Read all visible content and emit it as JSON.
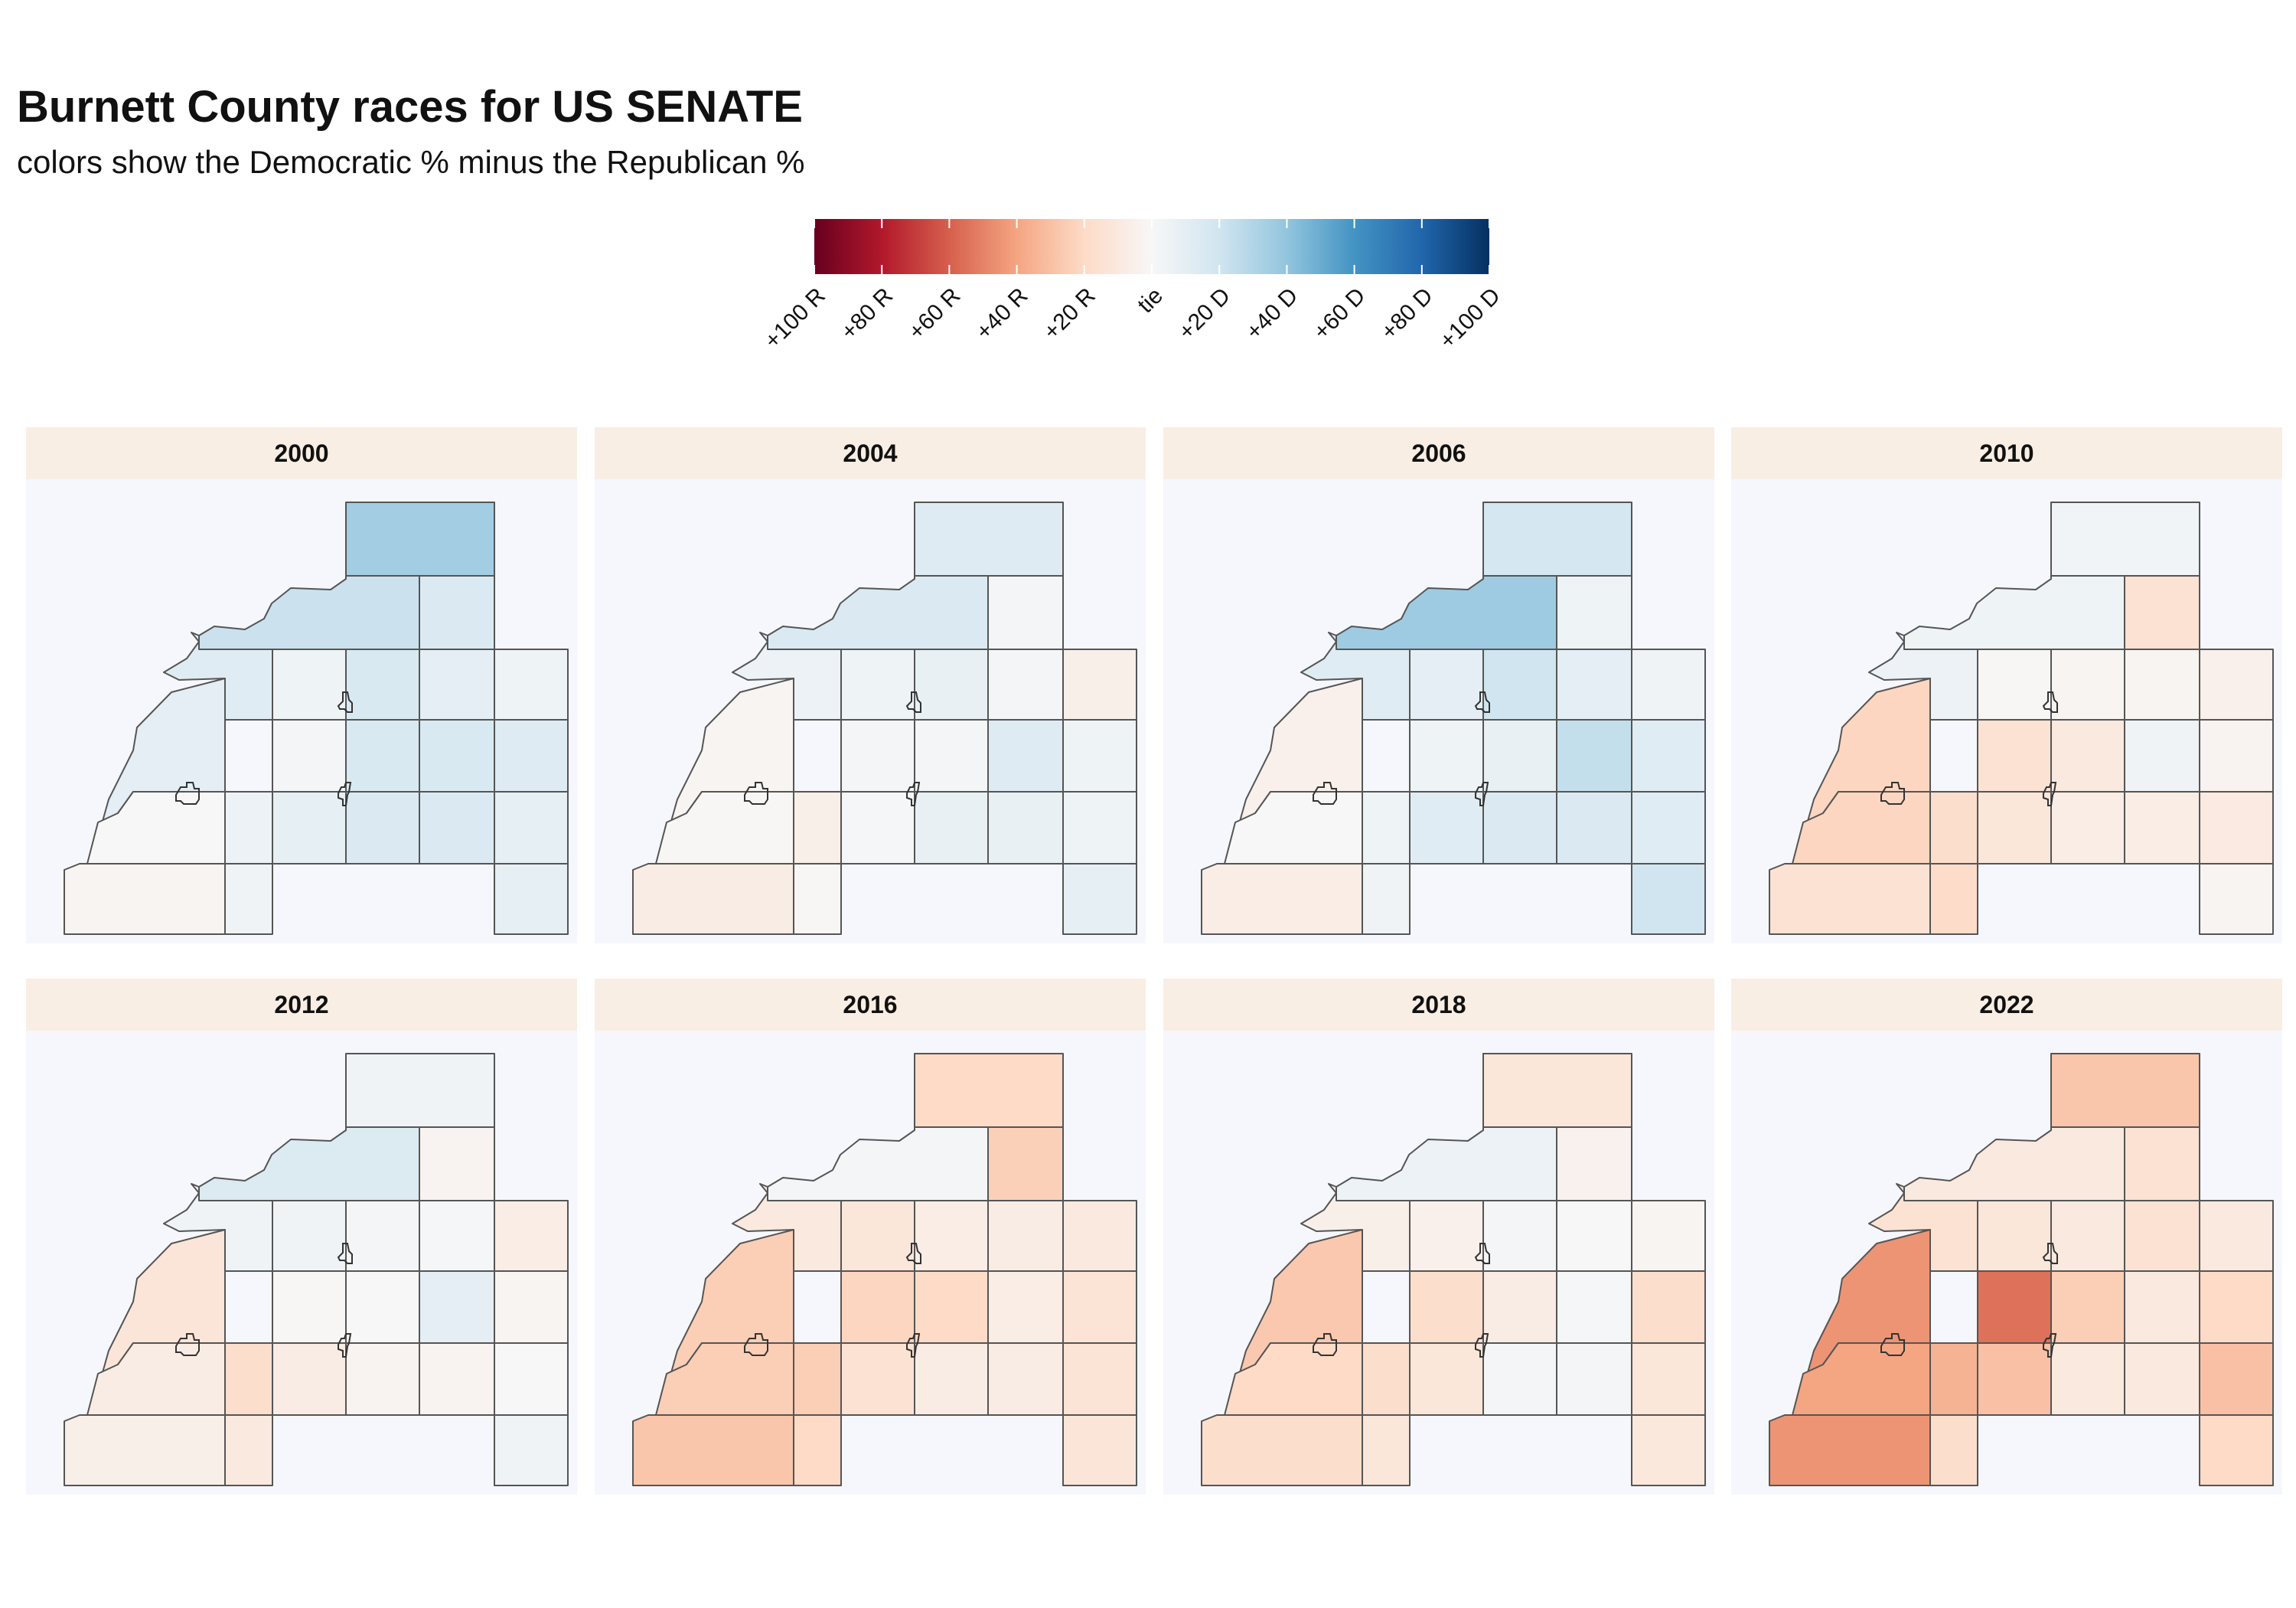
{
  "title": "Burnett County races for US SENATE",
  "subtitle": "colors show the Democratic % minus the Republican %",
  "legend": {
    "stops": [
      "#67001f",
      "#b2182b",
      "#d6604d",
      "#f4a582",
      "#fddbc7",
      "#f7f7f7",
      "#d1e5f0",
      "#92c5de",
      "#4393c3",
      "#2166ac",
      "#053061"
    ],
    "ticks": [
      "+100 R",
      "+80 R",
      "+60 R",
      "+40 R",
      "+20 R",
      "tie",
      "+20 D",
      "+40 D",
      "+60 D",
      "+80 D",
      "+100 D"
    ],
    "values": [
      -100,
      -80,
      -60,
      -40,
      -20,
      0,
      20,
      40,
      60,
      80,
      100
    ]
  },
  "panels": [
    {
      "year": "2000",
      "margins": {
        "northeast": 35,
        "upper_west": 22,
        "upper_east": 15,
        "row2_west": 12,
        "row2_c1": 5,
        "row2_c2": 16,
        "row2_c3": 10,
        "row2_c4": 5,
        "row3_west": 10,
        "row3_c1": 2,
        "row3_c2": 16,
        "row3_c3": 16,
        "row3_c4": 13,
        "row4_c0": 0,
        "row4_c1": 6,
        "row4_c2": 9,
        "row4_c3": 15,
        "row4_c4": 9,
        "row5_c0": -2,
        "row5_c1": 4,
        "row5_c4": 9
      }
    },
    {
      "year": "2004",
      "margins": {
        "northeast": 13,
        "upper_west": 15,
        "upper_east": 2,
        "row2_west": 6,
        "row2_c1": 5,
        "row2_c2": 8,
        "row2_c3": 2,
        "row2_c4": -6,
        "row3_west": -2,
        "row3_c1": 2,
        "row3_c2": 2,
        "row3_c3": 13,
        "row3_c4": 5,
        "row4_c0": -1,
        "row4_c1": -6,
        "row4_c2": 1,
        "row4_c3": 8,
        "row4_c4": 5,
        "row5_c0": -8,
        "row5_c1": -1,
        "row5_c4": 9
      }
    },
    {
      "year": "2006",
      "margins": {
        "northeast": 18,
        "upper_west": 36,
        "upper_east": 5,
        "row2_west": 12,
        "row2_c1": 10,
        "row2_c2": 20,
        "row2_c3": 10,
        "row2_c4": 4,
        "row3_west": -5,
        "row3_c1": 5,
        "row3_c2": 8,
        "row3_c3": 24,
        "row3_c4": 12,
        "row4_c0": 0,
        "row4_c1": 5,
        "row4_c2": 12,
        "row4_c3": 15,
        "row4_c4": 12,
        "row5_c0": -7,
        "row5_c1": 4,
        "row5_c4": 20
      }
    },
    {
      "year": "2010",
      "margins": {
        "northeast": 3,
        "upper_west": 5,
        "upper_east": -15,
        "row2_west": 6,
        "row2_c1": -1,
        "row2_c2": -2,
        "row2_c3": -2,
        "row2_c4": -5,
        "row3_west": -22,
        "row3_c1": -15,
        "row3_c2": -10,
        "row3_c3": 4,
        "row3_c4": -3,
        "row4_c0": -22,
        "row4_c1": -18,
        "row4_c2": -12,
        "row4_c3": -7,
        "row4_c4": -9,
        "row5_c0": -15,
        "row5_c1": -19,
        "row5_c4": -2
      }
    },
    {
      "year": "2012",
      "margins": {
        "northeast": 4,
        "upper_west": 14,
        "upper_east": -3,
        "row2_west": 4,
        "row2_c1": 4,
        "row2_c2": 2,
        "row2_c3": 1,
        "row2_c4": -7,
        "row3_west": -13,
        "row3_c1": -1,
        "row3_c2": 0,
        "row3_c3": 10,
        "row3_c4": -2,
        "row4_c0": -8,
        "row4_c1": -18,
        "row4_c2": -8,
        "row4_c3": -3,
        "row4_c4": 0,
        "row5_c0": -6,
        "row5_c1": -10,
        "row5_c4": 4
      }
    },
    {
      "year": "2016",
      "margins": {
        "northeast": -20,
        "upper_west": 2,
        "upper_east": -24,
        "row2_west": -10,
        "row2_c1": -12,
        "row2_c2": -7,
        "row2_c3": -8,
        "row2_c4": -10,
        "row3_west": -25,
        "row3_c1": -22,
        "row3_c2": -20,
        "row3_c3": -7,
        "row3_c4": -14,
        "row4_c0": -25,
        "row4_c1": -25,
        "row4_c2": -15,
        "row4_c3": -8,
        "row4_c4": -14,
        "row5_c0": -28,
        "row5_c1": -20,
        "row5_c4": -13
      }
    },
    {
      "year": "2018",
      "margins": {
        "northeast": -12,
        "upper_west": 6,
        "upper_east": -4,
        "row2_west": -6,
        "row2_c1": -5,
        "row2_c2": 2,
        "row2_c3": 0,
        "row2_c4": -2,
        "row3_west": -27,
        "row3_c1": -18,
        "row3_c2": -8,
        "row3_c3": 1,
        "row3_c4": -18,
        "row4_c0": -20,
        "row4_c1": -18,
        "row4_c2": -12,
        "row4_c3": 2,
        "row4_c4": -12,
        "row5_c0": -18,
        "row5_c1": -12,
        "row5_c4": -11
      }
    },
    {
      "year": "2022",
      "margins": {
        "northeast": -28,
        "upper_west": -10,
        "upper_east": -15,
        "row2_west": -15,
        "row2_c1": -12,
        "row2_c2": -10,
        "row2_c3": -15,
        "row2_c4": -10,
        "row3_west": -45,
        "row3_c1": -55,
        "row3_c2": -25,
        "row3_c3": -10,
        "row3_c4": -20,
        "row4_c0": -40,
        "row4_c1": -35,
        "row4_c2": -30,
        "row4_c3": -10,
        "row4_c4": -30,
        "row5_c0": -45,
        "row5_c1": -18,
        "row5_c4": -20
      }
    }
  ]
}
